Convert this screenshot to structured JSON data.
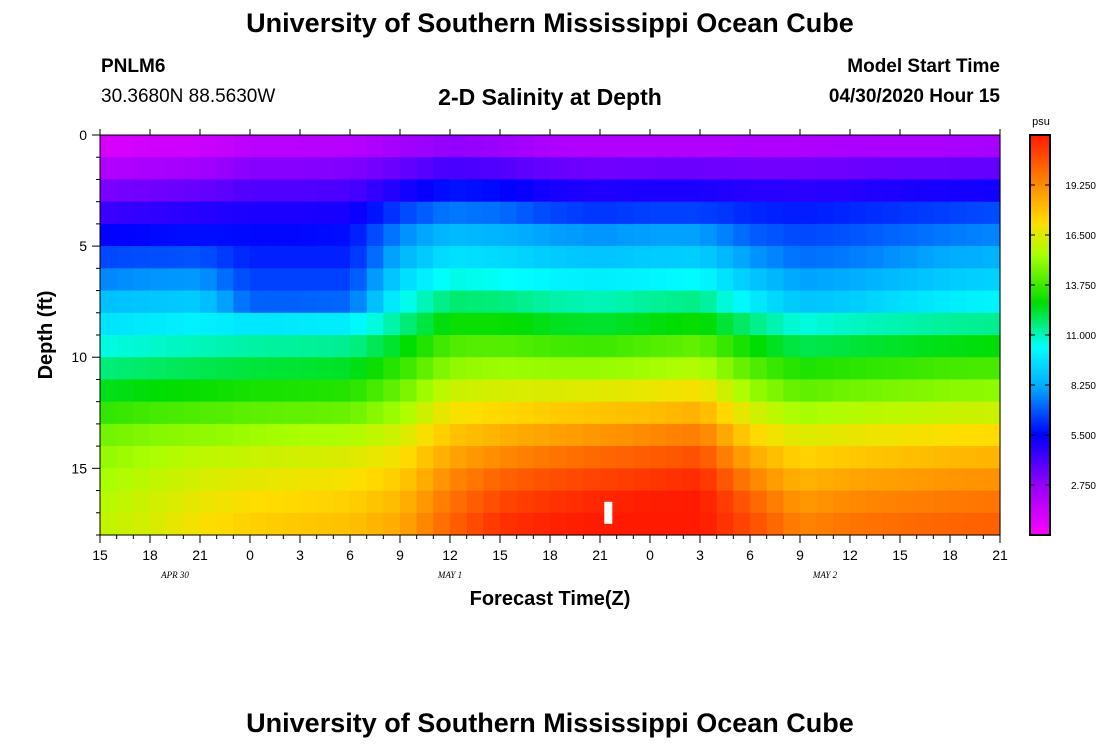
{
  "header": {
    "title": "University of Southern Mississippi Ocean Cube",
    "station": "PNLM6",
    "coords": "30.3680N 88.5630W",
    "plot_title": "2-D Salinity at Depth",
    "model_start_label": "Model Start Time",
    "model_start_value": "04/30/2020 Hour 15"
  },
  "footer": {
    "title": "University of Southern Mississippi Ocean Cube"
  },
  "chart_data": {
    "type": "heatmap",
    "title": "2-D Salinity at Depth",
    "xlabel": "Forecast Time(Z)",
    "ylabel": "Depth (ft)",
    "ylim": [
      0,
      18
    ],
    "y_ticks": [
      0,
      5,
      10,
      15
    ],
    "x_hours_range": [
      0,
      54
    ],
    "x_tick_labels": [
      "15",
      "18",
      "21",
      "0",
      "3",
      "6",
      "9",
      "12",
      "15",
      "18",
      "21",
      "0",
      "3",
      "6",
      "9",
      "12",
      "15",
      "18",
      "21"
    ],
    "date_labels": [
      {
        "text": "APR 30",
        "hour": 4.5
      },
      {
        "text": "MAY 1",
        "hour": 21
      },
      {
        "text": "MAY 2",
        "hour": 43.5
      }
    ],
    "colorbar": {
      "unit": "psu",
      "min": 0,
      "max": 22,
      "ticks": [
        "19.250",
        "16.500",
        "13.750",
        "11.000",
        "8.250",
        "5.500",
        "2.750"
      ],
      "tick_values": [
        19.25,
        16.5,
        13.75,
        11.0,
        8.25,
        5.5,
        2.75
      ]
    },
    "depth_rows_ft": [
      0.5,
      1.5,
      2.5,
      3.5,
      4.5,
      5.5,
      6.5,
      7.5,
      8.5,
      9.5,
      10.5,
      11.5,
      12.5,
      13.5,
      14.5,
      15.5,
      16.5,
      17.5
    ],
    "time_columns_hours": [
      0,
      3,
      6,
      9,
      12,
      15,
      18,
      21,
      24,
      27,
      30,
      33,
      36,
      39,
      42,
      45,
      48,
      51,
      54
    ],
    "salinity_psu": [
      [
        1.0,
        1.2,
        1.3,
        1.8,
        1.8,
        1.9,
        2.4,
        2.8,
        2.6,
        2.1,
        2.0,
        2.0,
        2.0,
        2.1,
        2.1,
        2.2,
        2.2,
        2.2,
        2.3
      ],
      [
        2.0,
        2.2,
        2.4,
        3.0,
        3.0,
        3.1,
        3.6,
        4.2,
        4.0,
        3.6,
        3.4,
        3.5,
        3.5,
        3.4,
        3.4,
        3.5,
        3.6,
        3.6,
        3.7
      ],
      [
        3.2,
        3.4,
        3.6,
        4.0,
        4.0,
        4.1,
        5.0,
        5.8,
        5.6,
        5.1,
        4.9,
        5.0,
        5.0,
        4.8,
        4.7,
        4.8,
        5.0,
        5.1,
        5.2
      ],
      [
        4.4,
        4.6,
        4.8,
        5.0,
        5.0,
        5.1,
        6.5,
        7.4,
        7.2,
        6.6,
        6.3,
        6.5,
        6.5,
        6.1,
        5.9,
        6.1,
        6.3,
        6.5,
        6.7
      ],
      [
        5.5,
        5.6,
        5.7,
        5.6,
        5.6,
        5.7,
        7.6,
        8.6,
        8.4,
        8.0,
        7.8,
        8.0,
        8.0,
        7.0,
        6.6,
        6.8,
        7.1,
        7.4,
        7.6
      ],
      [
        6.6,
        6.7,
        6.8,
        6.0,
        6.0,
        6.0,
        8.4,
        9.6,
        9.4,
        9.0,
        8.8,
        9.0,
        9.1,
        7.9,
        7.2,
        7.4,
        7.8,
        8.2,
        8.4
      ],
      [
        7.6,
        7.8,
        7.9,
        6.5,
        6.5,
        6.5,
        9.3,
        10.6,
        10.4,
        10.1,
        9.9,
        10.1,
        10.3,
        8.9,
        8.0,
        8.2,
        8.6,
        9.0,
        9.2
      ],
      [
        8.7,
        8.9,
        9.0,
        7.0,
        7.0,
        7.1,
        10.3,
        11.7,
        11.6,
        11.2,
        11.0,
        11.3,
        11.5,
        9.9,
        8.8,
        9.0,
        9.5,
        9.9,
        10.1
      ],
      [
        9.6,
        9.8,
        10.0,
        9.7,
        9.8,
        9.9,
        11.4,
        12.9,
        12.9,
        12.5,
        12.3,
        12.6,
        12.9,
        11.6,
        10.6,
        10.9,
        11.1,
        11.3,
        11.4
      ],
      [
        10.6,
        10.8,
        11.0,
        11.2,
        11.3,
        11.4,
        12.5,
        14.0,
        14.1,
        13.8,
        13.7,
        14.0,
        14.3,
        12.9,
        12.0,
        12.2,
        12.4,
        12.6,
        12.7
      ],
      [
        11.6,
        11.8,
        12.0,
        12.2,
        12.3,
        12.4,
        13.5,
        15.0,
        15.2,
        15.1,
        15.1,
        15.3,
        15.6,
        14.1,
        13.2,
        13.4,
        13.6,
        13.8,
        13.9
      ],
      [
        12.5,
        12.7,
        12.9,
        13.1,
        13.2,
        13.3,
        14.4,
        16.0,
        16.3,
        16.4,
        16.5,
        16.7,
        17.0,
        15.2,
        14.2,
        14.5,
        14.7,
        14.9,
        15.0
      ],
      [
        13.5,
        13.8,
        14.0,
        14.2,
        14.3,
        14.4,
        15.3,
        16.9,
        17.3,
        17.6,
        17.8,
        18.0,
        18.3,
        16.3,
        15.3,
        15.6,
        15.8,
        16.0,
        16.1
      ],
      [
        14.5,
        14.8,
        15.0,
        15.2,
        15.4,
        15.5,
        16.2,
        17.8,
        18.3,
        18.7,
        19.0,
        19.3,
        19.6,
        17.4,
        16.4,
        16.7,
        16.9,
        17.1,
        17.2
      ],
      [
        15.0,
        15.4,
        15.8,
        16.0,
        16.2,
        16.4,
        17.0,
        18.6,
        19.3,
        19.8,
        20.1,
        20.4,
        20.7,
        18.5,
        17.4,
        17.7,
        17.9,
        18.1,
        18.2
      ],
      [
        15.3,
        15.8,
        16.3,
        16.6,
        16.8,
        17.0,
        17.6,
        19.3,
        20.2,
        20.7,
        21.0,
        21.3,
        21.6,
        19.5,
        18.2,
        18.6,
        18.8,
        19.0,
        19.1
      ],
      [
        15.6,
        16.1,
        16.7,
        17.1,
        17.3,
        17.5,
        18.1,
        19.8,
        20.9,
        21.4,
        21.7,
        21.9,
        22.0,
        20.3,
        18.9,
        19.3,
        19.5,
        19.7,
        19.8
      ],
      [
        15.8,
        16.3,
        17.0,
        17.5,
        17.7,
        17.9,
        18.5,
        20.2,
        21.4,
        21.8,
        22.0,
        22.0,
        22.0,
        20.8,
        19.4,
        19.8,
        20.0,
        20.2,
        20.3
      ]
    ],
    "marker": {
      "hour": 30.5,
      "depth_ft": 17.0
    }
  }
}
